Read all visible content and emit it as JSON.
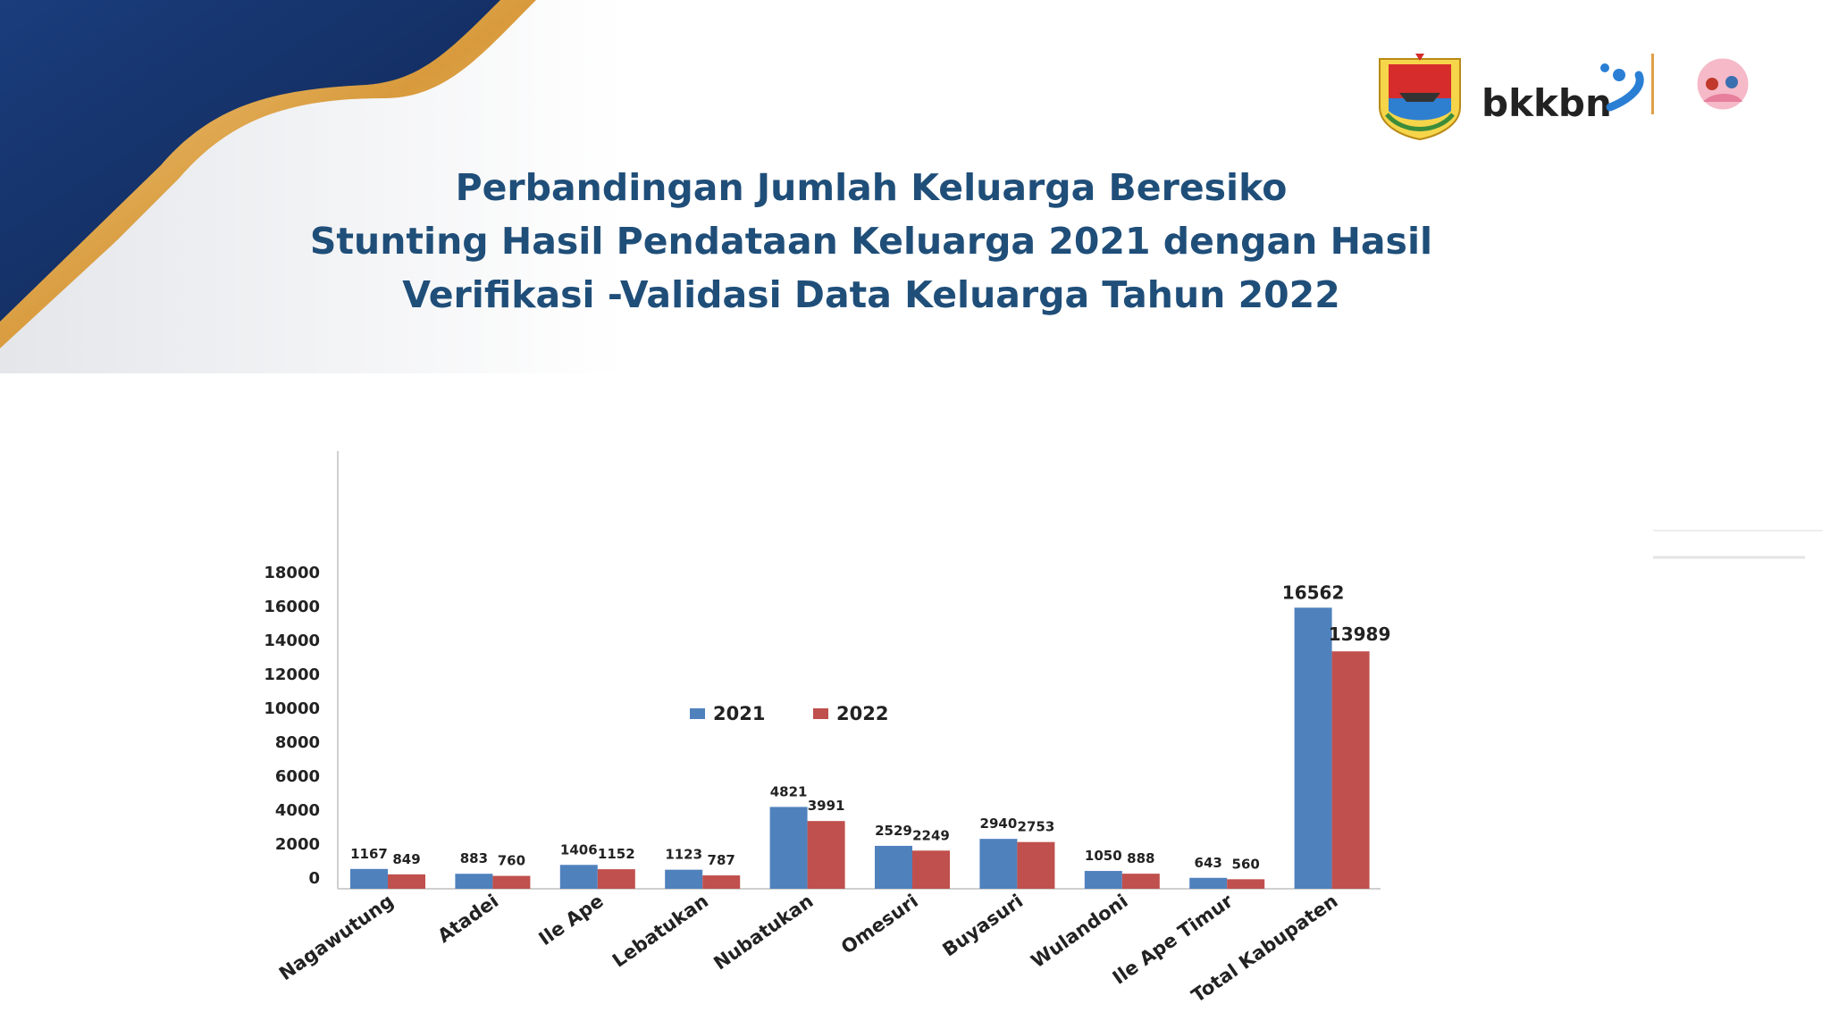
{
  "slide": {
    "title_lines": [
      "Perbandingan Jumlah Keluarga Beresiko",
      "Stunting Hasil Pendataan Keluarga 2021  dengan  Hasil",
      "Verifikasi -Validasi Data   Keluarga Tahun 2022"
    ],
    "logos": {
      "bkkbn_wordmark": "bkkbn"
    }
  },
  "colors": {
    "series_2021": "#4f81bd",
    "series_2022": "#c0504d",
    "title": "#1f4e79",
    "deco_navy": "#17326a",
    "deco_gold": "#e0a84a"
  },
  "chart_data": {
    "type": "bar",
    "title": "",
    "xlabel": "",
    "ylabel": "",
    "ylim": [
      0,
      18000
    ],
    "y_ticks": [
      0,
      2000,
      4000,
      6000,
      8000,
      10000,
      12000,
      14000,
      16000,
      18000
    ],
    "grid": false,
    "legend_position": "center",
    "categories": [
      "Nagawutung",
      "Atadei",
      "Ile Ape",
      "Lebatukan",
      "Nubatukan",
      "Omesuri",
      "Buyasuri",
      "Wulandoni",
      "Ile Ape Timur",
      "Total Kabupaten"
    ],
    "series": [
      {
        "name": "2021",
        "values": [
          1167,
          883,
          1406,
          1123,
          4821,
          2529,
          2940,
          1050,
          643,
          16562
        ]
      },
      {
        "name": "2022",
        "values": [
          849,
          760,
          1152,
          787,
          3991,
          2249,
          2753,
          888,
          560,
          13989
        ]
      }
    ]
  }
}
